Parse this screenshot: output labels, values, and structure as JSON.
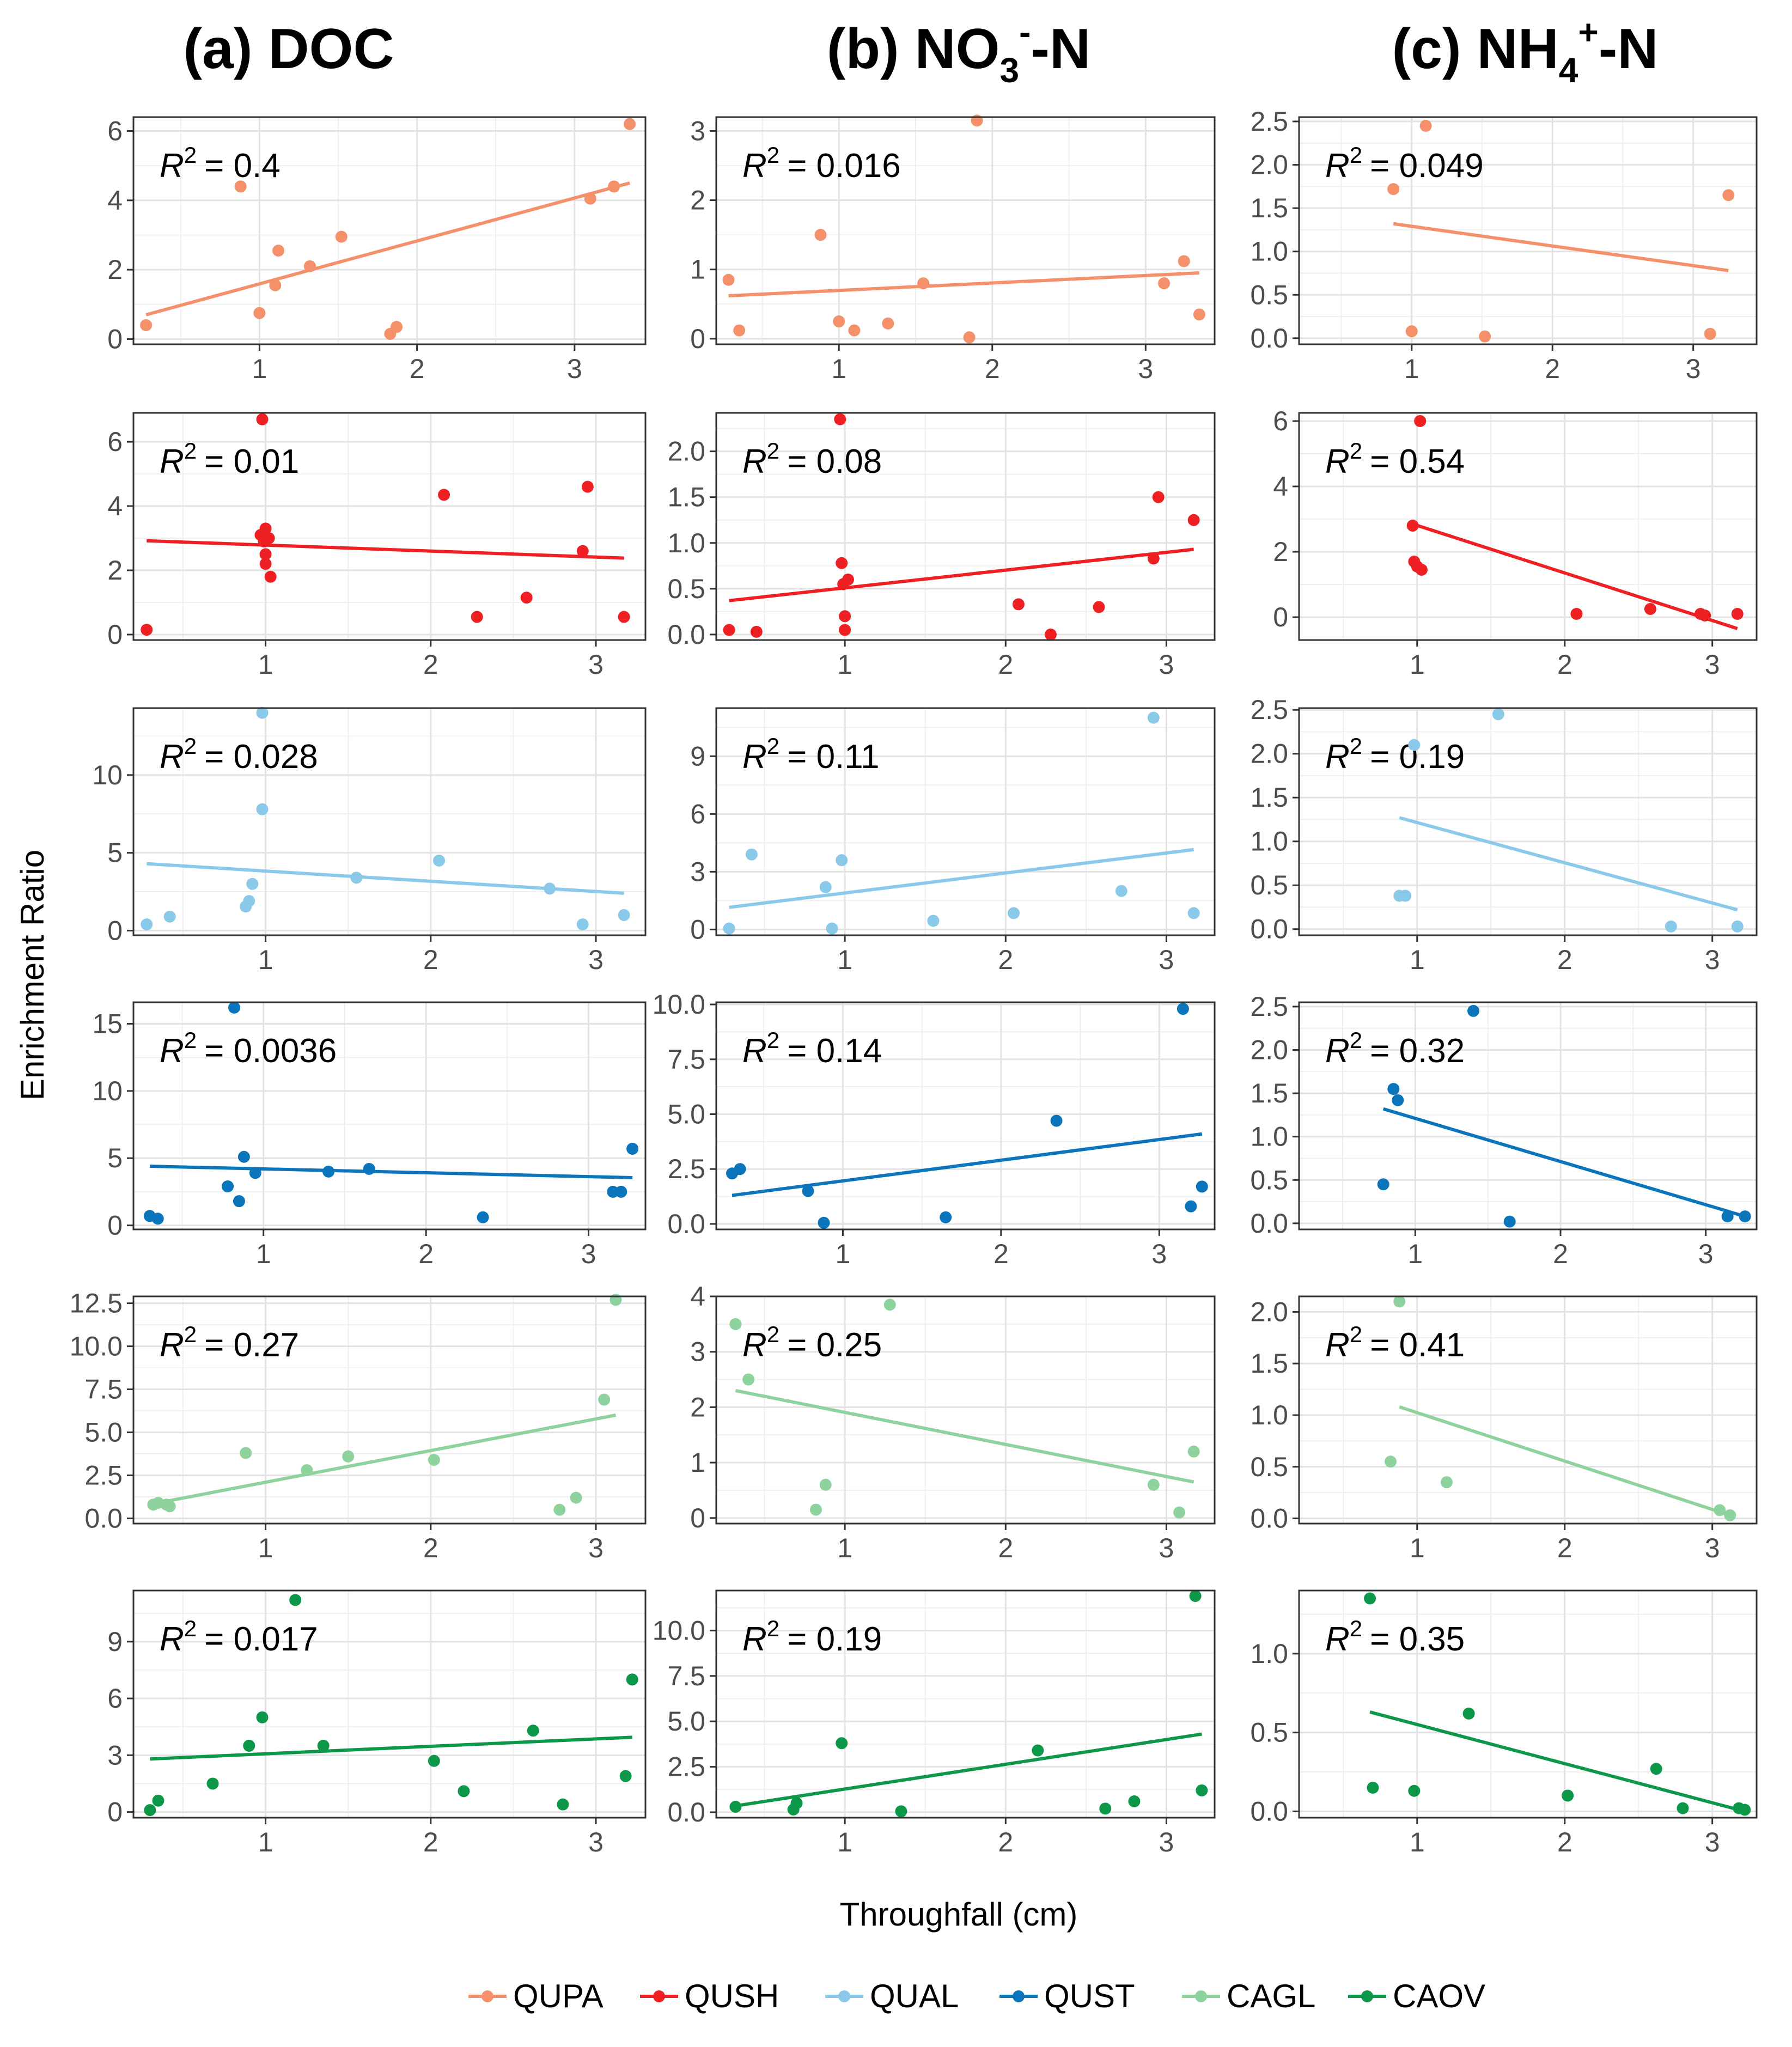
{
  "figure": {
    "column_titles": [
      {
        "prefix": "(a) DOC",
        "sub": "",
        "sup": "",
        "suffix": ""
      },
      {
        "prefix": "(b) NO",
        "sub": "3",
        "sup": "-",
        "suffix": "-N"
      },
      {
        "prefix": "(c) NH",
        "sub": "4",
        "sup": "+",
        "suffix": "-N"
      }
    ],
    "ylabel": "Enrichment Ratio",
    "xlabel": "Throughfall (cm)",
    "r2_prefix": "R",
    "r2_exponent": "2",
    "r2_equals": "= ",
    "legend": [
      {
        "name": "QUPA",
        "color": "#F4916B"
      },
      {
        "name": "QUSH",
        "color": "#EE2024"
      },
      {
        "name": "QUAL",
        "color": "#8AC9EA"
      },
      {
        "name": "QUST",
        "color": "#0B75BC"
      },
      {
        "name": "CAGL",
        "color": "#8ED39D"
      },
      {
        "name": "CAOV",
        "color": "#0C9848"
      }
    ]
  },
  "chart_data": [
    {
      "type": "scatter",
      "species": "QUPA",
      "column": "DOC",
      "r2": "0.4",
      "xlim": [
        0.2,
        3.45
      ],
      "ylim": [
        -0.15,
        6.4
      ],
      "xticks": [
        "1",
        "2",
        "3"
      ],
      "yticks": [
        "0",
        "2",
        "4",
        "6"
      ],
      "x": [
        0.28,
        0.88,
        1.0,
        1.1,
        1.12,
        1.32,
        1.52,
        1.83,
        1.87,
        3.1,
        3.25,
        3.35
      ],
      "y": [
        0.4,
        4.4,
        0.75,
        1.55,
        2.55,
        2.1,
        2.95,
        0.15,
        0.35,
        4.05,
        4.4,
        6.2
      ],
      "fit": [
        [
          0.28,
          0.7
        ],
        [
          3.35,
          4.5
        ]
      ]
    },
    {
      "type": "scatter",
      "species": "QUPA",
      "column": "NO3-N",
      "r2": "0.016",
      "xlim": [
        0.2,
        3.45
      ],
      "ylim": [
        -0.08,
        3.2
      ],
      "xticks": [
        "1",
        "2",
        "3"
      ],
      "yticks": [
        "0",
        "1",
        "2",
        "3"
      ],
      "x": [
        0.28,
        0.35,
        0.88,
        1.0,
        1.1,
        1.32,
        1.55,
        1.85,
        1.9,
        3.12,
        3.25,
        3.35
      ],
      "y": [
        0.85,
        0.12,
        1.5,
        0.25,
        0.12,
        0.22,
        0.8,
        0.02,
        3.15,
        0.8,
        1.12,
        0.35
      ],
      "fit": [
        [
          0.28,
          0.62
        ],
        [
          3.35,
          0.95
        ]
      ]
    },
    {
      "type": "scatter",
      "species": "QUPA",
      "column": "NH4-N",
      "r2": "0.049",
      "xlim": [
        0.2,
        3.45
      ],
      "ylim": [
        -0.07,
        2.55
      ],
      "xticks": [
        "1",
        "2",
        "3"
      ],
      "yticks": [
        "0.0",
        "0.5",
        "1.0",
        "1.5",
        "2.0",
        "2.5"
      ],
      "x": [
        0.87,
        1.0,
        1.1,
        1.52,
        3.12,
        3.25
      ],
      "y": [
        1.72,
        0.08,
        2.45,
        0.02,
        0.05,
        1.65
      ],
      "fit": [
        [
          0.87,
          1.32
        ],
        [
          3.25,
          0.78
        ]
      ]
    },
    {
      "type": "scatter",
      "species": "QUSH",
      "column": "DOC",
      "r2": "0.01",
      "xlim": [
        0.2,
        3.3
      ],
      "ylim": [
        -0.17,
        6.9
      ],
      "xticks": [
        "1",
        "2",
        "3"
      ],
      "yticks": [
        "0",
        "2",
        "4",
        "6"
      ],
      "x": [
        0.28,
        0.97,
        0.98,
        0.99,
        1.0,
        1.0,
        1.0,
        1.02,
        1.03,
        2.08,
        2.28,
        2.58,
        2.92,
        2.95,
        3.17
      ],
      "y": [
        0.15,
        3.1,
        6.7,
        2.9,
        2.5,
        2.2,
        3.3,
        3.0,
        1.8,
        4.35,
        0.55,
        1.15,
        2.6,
        4.6,
        0.55
      ],
      "fit": [
        [
          0.28,
          2.92
        ],
        [
          3.17,
          2.38
        ]
      ]
    },
    {
      "type": "scatter",
      "species": "QUSH",
      "column": "NO3-N",
      "r2": "0.08",
      "xlim": [
        0.2,
        3.3
      ],
      "ylim": [
        -0.06,
        2.42
      ],
      "xticks": [
        "1",
        "2",
        "3"
      ],
      "yticks": [
        "0.0",
        "0.5",
        "1.0",
        "1.5",
        "2.0"
      ],
      "x": [
        0.28,
        0.45,
        0.97,
        0.98,
        0.99,
        1.0,
        1.0,
        1.02,
        2.08,
        2.28,
        2.58,
        2.92,
        2.95,
        3.17
      ],
      "y": [
        0.05,
        0.03,
        2.35,
        0.78,
        0.55,
        0.2,
        0.05,
        0.6,
        0.33,
        0.0,
        0.3,
        0.83,
        1.5,
        1.25
      ],
      "fit": [
        [
          0.28,
          0.37
        ],
        [
          3.17,
          0.93
        ]
      ]
    },
    {
      "type": "scatter",
      "species": "QUSH",
      "column": "NH4-N",
      "r2": "0.54",
      "xlim": [
        0.2,
        3.3
      ],
      "ylim": [
        -0.7,
        6.25
      ],
      "xticks": [
        "1",
        "2",
        "3"
      ],
      "yticks": [
        "0",
        "2",
        "4",
        "6"
      ],
      "x": [
        0.97,
        0.98,
        1.0,
        1.02,
        1.03,
        2.08,
        2.58,
        2.92,
        2.95,
        3.17
      ],
      "y": [
        2.8,
        1.7,
        1.55,
        6.0,
        1.45,
        0.1,
        0.25,
        0.1,
        0.05,
        0.1
      ],
      "fit": [
        [
          0.97,
          2.85
        ],
        [
          3.17,
          -0.35
        ]
      ]
    },
    {
      "type": "scatter",
      "species": "QUAL",
      "column": "DOC",
      "r2": "0.028",
      "xlim": [
        0.2,
        3.3
      ],
      "ylim": [
        -0.3,
        14.3
      ],
      "xticks": [
        "1",
        "2",
        "3"
      ],
      "yticks": [
        "0",
        "5",
        "10"
      ],
      "x": [
        0.28,
        0.42,
        0.88,
        0.9,
        0.92,
        0.98,
        0.98,
        1.55,
        2.05,
        2.72,
        2.92,
        3.17
      ],
      "y": [
        0.4,
        0.9,
        1.55,
        1.9,
        3.0,
        14.0,
        7.8,
        3.4,
        4.5,
        2.7,
        0.4,
        1.0
      ],
      "fit": [
        [
          0.28,
          4.3
        ],
        [
          3.17,
          2.4
        ]
      ]
    },
    {
      "type": "scatter",
      "species": "QUAL",
      "column": "NO3-N",
      "r2": "0.11",
      "xlim": [
        0.2,
        3.3
      ],
      "ylim": [
        -0.3,
        11.5
      ],
      "xticks": [
        "1",
        "2",
        "3"
      ],
      "yticks": [
        "0",
        "3",
        "6",
        "9"
      ],
      "x": [
        0.28,
        0.42,
        0.88,
        0.92,
        0.98,
        1.55,
        2.05,
        2.72,
        2.92,
        3.17
      ],
      "y": [
        0.05,
        3.9,
        2.2,
        0.05,
        3.6,
        0.45,
        0.85,
        2.0,
        11.0,
        0.85
      ],
      "fit": [
        [
          0.28,
          1.15
        ],
        [
          3.17,
          4.15
        ]
      ]
    },
    {
      "type": "scatter",
      "species": "QUAL",
      "column": "NH4-N",
      "r2": "0.19",
      "xlim": [
        0.2,
        3.3
      ],
      "ylim": [
        -0.07,
        2.52
      ],
      "xticks": [
        "1",
        "2",
        "3"
      ],
      "yticks": [
        "0.0",
        "0.5",
        "1.0",
        "1.5",
        "2.0",
        "2.5"
      ],
      "x": [
        0.88,
        0.92,
        0.98,
        1.55,
        2.72,
        3.17
      ],
      "y": [
        0.38,
        0.38,
        2.1,
        2.45,
        0.03,
        0.03
      ],
      "fit": [
        [
          0.88,
          1.27
        ],
        [
          3.17,
          0.22
        ]
      ]
    },
    {
      "type": "scatter",
      "species": "QUST",
      "column": "DOC",
      "r2": "0.0036",
      "xlim": [
        0.2,
        3.35
      ],
      "ylim": [
        -0.3,
        16.6
      ],
      "xticks": [
        "1",
        "2",
        "3"
      ],
      "yticks": [
        "0",
        "5",
        "10",
        "15"
      ],
      "x": [
        0.3,
        0.35,
        0.78,
        0.82,
        0.85,
        0.88,
        0.95,
        1.4,
        1.65,
        2.35,
        3.15,
        3.2,
        3.27
      ],
      "y": [
        0.7,
        0.5,
        2.9,
        16.2,
        1.8,
        5.1,
        3.9,
        4.0,
        4.2,
        0.6,
        2.5,
        2.5,
        5.7
      ],
      "fit": [
        [
          0.3,
          4.4
        ],
        [
          3.27,
          3.55
        ]
      ]
    },
    {
      "type": "scatter",
      "species": "QUST",
      "column": "NO3-N",
      "r2": "0.14",
      "xlim": [
        0.2,
        3.35
      ],
      "ylim": [
        -0.25,
        10.1
      ],
      "xticks": [
        "1",
        "2",
        "3"
      ],
      "yticks": [
        "0.0",
        "2.5",
        "5.0",
        "7.5",
        "10.0"
      ],
      "x": [
        0.3,
        0.35,
        0.78,
        0.88,
        1.65,
        2.35,
        3.15,
        3.2,
        3.27
      ],
      "y": [
        2.3,
        2.5,
        1.5,
        0.05,
        0.3,
        4.7,
        9.8,
        0.8,
        1.7
      ],
      "fit": [
        [
          0.3,
          1.3
        ],
        [
          3.27,
          4.1
        ]
      ]
    },
    {
      "type": "scatter",
      "species": "QUST",
      "column": "NH4-N",
      "r2": "0.32",
      "xlim": [
        0.2,
        3.35
      ],
      "ylim": [
        -0.07,
        2.55
      ],
      "xticks": [
        "1",
        "2",
        "3"
      ],
      "yticks": [
        "0.0",
        "0.5",
        "1.0",
        "1.5",
        "2.0",
        "2.5"
      ],
      "x": [
        0.78,
        0.85,
        0.88,
        1.4,
        1.65,
        3.15,
        3.27
      ],
      "y": [
        0.45,
        1.55,
        1.42,
        2.45,
        0.02,
        0.08,
        0.08
      ],
      "fit": [
        [
          0.78,
          1.32
        ],
        [
          3.27,
          0.08
        ]
      ]
    },
    {
      "type": "scatter",
      "species": "CAGL",
      "column": "DOC",
      "r2": "0.27",
      "xlim": [
        0.2,
        3.3
      ],
      "ylim": [
        -0.3,
        12.9
      ],
      "xticks": [
        "1",
        "2",
        "3"
      ],
      "yticks": [
        "0.0",
        "2.5",
        "5.0",
        "7.5",
        "10.0",
        "12.5"
      ],
      "x": [
        0.32,
        0.35,
        0.4,
        0.42,
        0.88,
        1.25,
        1.5,
        2.02,
        2.78,
        2.88,
        3.05,
        3.12
      ],
      "y": [
        0.8,
        0.9,
        0.8,
        0.7,
        3.8,
        2.8,
        3.6,
        3.4,
        0.5,
        1.2,
        6.9,
        12.7
      ],
      "fit": [
        [
          0.32,
          0.85
        ],
        [
          3.12,
          6.0
        ]
      ]
    },
    {
      "type": "scatter",
      "species": "CAGL",
      "column": "NO3-N",
      "r2": "0.25",
      "xlim": [
        0.2,
        3.3
      ],
      "ylim": [
        -0.1,
        4.0
      ],
      "xticks": [
        "1",
        "2",
        "3"
      ],
      "yticks": [
        "0",
        "1",
        "2",
        "3",
        "4"
      ],
      "x": [
        0.32,
        0.4,
        0.82,
        0.88,
        1.28,
        2.92,
        3.08,
        3.17
      ],
      "y": [
        3.5,
        2.5,
        0.15,
        0.6,
        3.85,
        0.6,
        0.1,
        1.2
      ],
      "fit": [
        [
          0.32,
          2.3
        ],
        [
          3.17,
          0.65
        ]
      ]
    },
    {
      "type": "scatter",
      "species": "CAGL",
      "column": "NH4-N",
      "r2": "0.41",
      "xlim": [
        0.2,
        3.3
      ],
      "ylim": [
        -0.05,
        2.15
      ],
      "xticks": [
        "1",
        "2",
        "3"
      ],
      "yticks": [
        "0.0",
        "0.5",
        "1.0",
        "1.5",
        "2.0"
      ],
      "x": [
        0.82,
        0.88,
        1.2,
        3.05,
        3.12
      ],
      "y": [
        0.55,
        2.1,
        0.35,
        0.08,
        0.03
      ],
      "fit": [
        [
          0.88,
          1.08
        ],
        [
          3.12,
          0.03
        ]
      ]
    },
    {
      "type": "scatter",
      "species": "CAOV",
      "column": "DOC",
      "r2": "0.017",
      "xlim": [
        0.2,
        3.3
      ],
      "ylim": [
        -0.3,
        11.7
      ],
      "xticks": [
        "1",
        "2",
        "3"
      ],
      "yticks": [
        "0",
        "3",
        "6",
        "9"
      ],
      "x": [
        0.3,
        0.35,
        0.68,
        0.9,
        0.98,
        1.18,
        1.35,
        2.02,
        2.2,
        2.62,
        2.8,
        3.18,
        3.22
      ],
      "y": [
        0.1,
        0.6,
        1.5,
        3.5,
        5.0,
        11.2,
        3.5,
        2.7,
        1.1,
        4.3,
        0.4,
        1.9,
        7.0
      ],
      "fit": [
        [
          0.3,
          2.8
        ],
        [
          3.22,
          3.95
        ]
      ]
    },
    {
      "type": "scatter",
      "species": "CAOV",
      "column": "NO3-N",
      "r2": "0.19",
      "xlim": [
        0.2,
        3.3
      ],
      "ylim": [
        -0.3,
        12.2
      ],
      "xticks": [
        "1",
        "2",
        "3"
      ],
      "yticks": [
        "0.0",
        "2.5",
        "5.0",
        "7.5",
        "10.0"
      ],
      "x": [
        0.32,
        0.68,
        0.7,
        0.98,
        1.35,
        2.2,
        2.62,
        2.8,
        3.18,
        3.22
      ],
      "y": [
        0.3,
        0.15,
        0.5,
        3.8,
        0.05,
        3.4,
        0.2,
        0.6,
        11.9,
        1.2
      ],
      "fit": [
        [
          0.32,
          0.35
        ],
        [
          3.22,
          4.3
        ]
      ]
    },
    {
      "type": "scatter",
      "species": "CAOV",
      "column": "NH4-N",
      "r2": "0.35",
      "xlim": [
        0.2,
        3.3
      ],
      "ylim": [
        -0.04,
        1.4
      ],
      "xticks": [
        "1",
        "2",
        "3"
      ],
      "yticks": [
        "0.0",
        "0.5",
        "1.0"
      ],
      "x": [
        0.68,
        0.7,
        0.98,
        1.35,
        2.02,
        2.62,
        2.8,
        3.18,
        3.22
      ],
      "y": [
        1.35,
        0.15,
        0.13,
        0.62,
        0.1,
        0.27,
        0.02,
        0.02,
        0.01
      ],
      "fit": [
        [
          0.68,
          0.63
        ],
        [
          3.22,
          0.0
        ]
      ]
    }
  ]
}
